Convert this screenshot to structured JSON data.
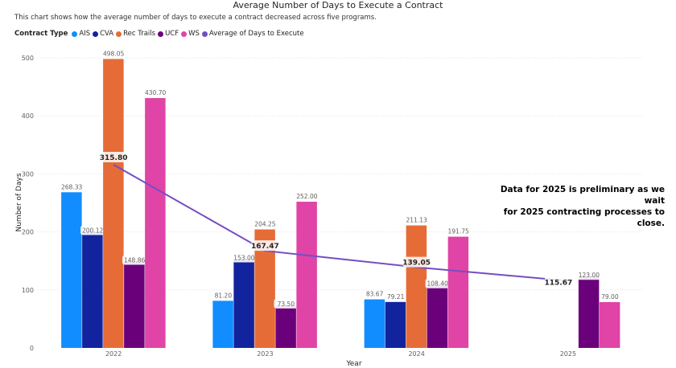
{
  "header": {
    "title": "Average Number of Days to Execute a Contract",
    "subtitle": "This chart shows how the average number of days to execute a contract decreased across five programs."
  },
  "legend": {
    "title": "Contract Type",
    "items": [
      {
        "label": "AIS",
        "color": "#118DFF"
      },
      {
        "label": "CVA",
        "color": "#12239E"
      },
      {
        "label": "Rec Trails",
        "color": "#E66C37"
      },
      {
        "label": "UCF",
        "color": "#6B007B"
      },
      {
        "label": "WS",
        "color": "#E044A7"
      },
      {
        "label": "Average of Days to Execute",
        "color": "#744EC2"
      }
    ]
  },
  "annotation": {
    "line1": "Data for 2025 is preliminary as we wait",
    "line2": "for 2025 contracting processes to close."
  },
  "chart_data": {
    "type": "bar",
    "categories": [
      "2022",
      "2023",
      "2024",
      "2025"
    ],
    "xlabel": "Year",
    "ylabel": "Number of Days",
    "ylim": [
      0,
      500
    ],
    "yticks": [
      0,
      100,
      200,
      300,
      400,
      500
    ],
    "grid": true,
    "legend_position": "top-left",
    "series": [
      {
        "name": "AIS",
        "color": "#118DFF",
        "values": [
          268.33,
          81.2,
          83.67,
          null
        ],
        "labels": [
          "268.33",
          "81.20",
          "83.67",
          ""
        ]
      },
      {
        "name": "CVA",
        "color": "#12239E",
        "values": [
          200.12,
          153.0,
          79.21,
          null
        ],
        "labels": [
          "200.12",
          "153.00",
          "79.21",
          ""
        ]
      },
      {
        "name": "Rec Trails",
        "color": "#E66C37",
        "values": [
          498.05,
          204.25,
          211.13,
          null
        ],
        "labels": [
          "498.05",
          "204.25",
          "211.13",
          ""
        ]
      },
      {
        "name": "UCF",
        "color": "#6B007B",
        "values": [
          148.86,
          73.5,
          108.4,
          123.0
        ],
        "labels": [
          "148.86",
          "73.50",
          "108.40",
          "123.00"
        ]
      },
      {
        "name": "WS",
        "color": "#E044A7",
        "values": [
          430.7,
          252.0,
          191.75,
          79.0
        ],
        "labels": [
          "430.70",
          "252.00",
          "191.75",
          "79.00"
        ]
      }
    ],
    "line": {
      "name": "Average of Days to Execute",
      "color": "#744EC2",
      "values": [
        315.8,
        167.47,
        139.05,
        115.67
      ],
      "labels": [
        "315.80",
        "167.47",
        "139.05",
        "115.67"
      ]
    }
  }
}
